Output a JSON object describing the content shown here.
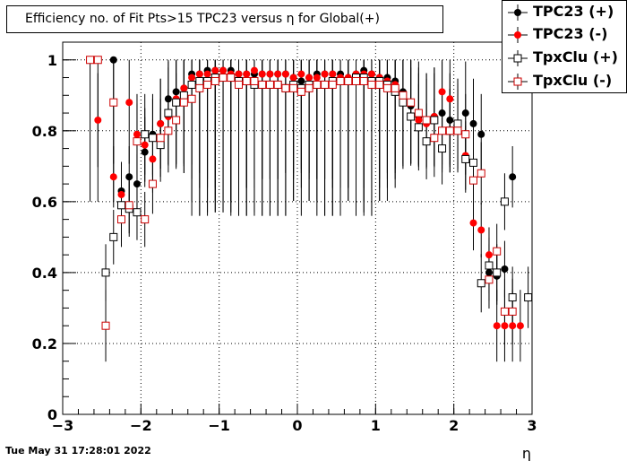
{
  "timestamp": "Tue May 31 17:28:01 2022",
  "chart_data": {
    "type": "scatter",
    "title": "Efficiency no. of Fit Pts>15 TPC23 versus η for Global(+)",
    "xlabel": "η",
    "ylabel": "",
    "xlim": [
      -3,
      3
    ],
    "ylim": [
      0,
      1.05
    ],
    "xticks": [
      "−3",
      "−2",
      "−1",
      "0",
      "1",
      "2",
      "3"
    ],
    "yticks": [
      "0",
      "0.2",
      "0.4",
      "0.6",
      "0.8",
      "1"
    ],
    "grid": true,
    "legend_position": "top-right",
    "series": [
      {
        "name": "TPC23 (+)",
        "color": "#000000",
        "marker": "filled-circle",
        "x": [
          -2.35,
          -2.25,
          -2.15,
          -2.05,
          -1.95,
          -1.85,
          -1.75,
          -1.65,
          -1.55,
          -1.45,
          -1.35,
          -1.25,
          -1.15,
          -1.05,
          -0.95,
          -0.85,
          -0.75,
          -0.65,
          -0.55,
          -0.45,
          -0.35,
          -0.25,
          -0.15,
          -0.05,
          0.05,
          0.15,
          0.25,
          0.35,
          0.45,
          0.55,
          0.65,
          0.75,
          0.85,
          0.95,
          1.05,
          1.15,
          1.25,
          1.35,
          1.45,
          1.55,
          1.65,
          1.75,
          1.85,
          1.95,
          2.05,
          2.15,
          2.25,
          2.35,
          2.45,
          2.55,
          2.65,
          2.75
        ],
        "y": [
          1.0,
          0.63,
          0.67,
          0.65,
          0.74,
          0.79,
          0.82,
          0.89,
          0.91,
          0.92,
          0.96,
          0.96,
          0.97,
          0.97,
          0.97,
          0.97,
          0.96,
          0.96,
          0.96,
          0.96,
          0.96,
          0.96,
          0.96,
          0.95,
          0.94,
          0.95,
          0.96,
          0.96,
          0.96,
          0.96,
          0.95,
          0.96,
          0.97,
          0.96,
          0.95,
          0.95,
          0.94,
          0.91,
          0.87,
          0.84,
          0.83,
          0.84,
          0.85,
          0.83,
          0.82,
          0.85,
          0.82,
          0.79,
          0.4,
          0.39,
          0.41,
          0.67
        ]
      },
      {
        "name": "TPC23 (-)",
        "color": "#ff0000",
        "marker": "filled-circle",
        "x": [
          -2.55,
          -2.35,
          -2.25,
          -2.15,
          -2.05,
          -1.95,
          -1.85,
          -1.75,
          -1.65,
          -1.55,
          -1.45,
          -1.35,
          -1.25,
          -1.15,
          -1.05,
          -0.95,
          -0.85,
          -0.75,
          -0.65,
          -0.55,
          -0.45,
          -0.35,
          -0.25,
          -0.15,
          -0.05,
          0.05,
          0.15,
          0.25,
          0.35,
          0.45,
          0.55,
          0.65,
          0.75,
          0.85,
          0.95,
          1.05,
          1.15,
          1.25,
          1.35,
          1.45,
          1.55,
          1.65,
          1.75,
          1.85,
          1.95,
          2.05,
          2.15,
          2.25,
          2.35,
          2.45,
          2.55,
          2.65,
          2.75,
          2.85
        ],
        "y": [
          0.83,
          0.67,
          0.62,
          0.88,
          0.79,
          0.76,
          0.72,
          0.82,
          0.84,
          0.89,
          0.92,
          0.95,
          0.96,
          0.96,
          0.97,
          0.97,
          0.96,
          0.96,
          0.96,
          0.97,
          0.96,
          0.96,
          0.96,
          0.96,
          0.95,
          0.96,
          0.95,
          0.95,
          0.96,
          0.96,
          0.95,
          0.95,
          0.96,
          0.96,
          0.96,
          0.95,
          0.94,
          0.93,
          0.9,
          0.88,
          0.83,
          0.82,
          0.84,
          0.91,
          0.89,
          0.81,
          0.73,
          0.54,
          0.52,
          0.45,
          0.25,
          0.25,
          0.25,
          0.25
        ]
      },
      {
        "name": "TpxClu (+)",
        "color": "#000000",
        "marker": "open-square",
        "x": [
          -2.45,
          -2.35,
          -2.25,
          -2.15,
          -2.05,
          -1.95,
          -1.85,
          -1.75,
          -1.65,
          -1.55,
          -1.45,
          -1.35,
          -1.25,
          -1.15,
          -1.05,
          -0.95,
          -0.85,
          -0.75,
          -0.65,
          -0.55,
          -0.45,
          -0.35,
          -0.25,
          -0.15,
          -0.05,
          0.05,
          0.15,
          0.25,
          0.35,
          0.45,
          0.55,
          0.65,
          0.75,
          0.85,
          0.95,
          1.05,
          1.15,
          1.25,
          1.35,
          1.45,
          1.55,
          1.65,
          1.75,
          1.85,
          1.95,
          2.05,
          2.15,
          2.25,
          2.35,
          2.45,
          2.55,
          2.65,
          2.75,
          2.95
        ],
        "y": [
          0.4,
          0.5,
          0.59,
          0.58,
          0.57,
          0.79,
          0.78,
          0.76,
          0.85,
          0.88,
          0.9,
          0.93,
          0.94,
          0.94,
          0.95,
          0.95,
          0.95,
          0.94,
          0.94,
          0.93,
          0.93,
          0.93,
          0.93,
          0.92,
          0.93,
          0.92,
          0.93,
          0.93,
          0.93,
          0.94,
          0.94,
          0.94,
          0.95,
          0.95,
          0.94,
          0.94,
          0.93,
          0.91,
          0.88,
          0.84,
          0.81,
          0.77,
          0.83,
          0.75,
          0.8,
          0.82,
          0.72,
          0.71,
          0.37,
          0.42,
          0.4,
          0.6,
          0.33,
          0.33
        ]
      },
      {
        "name": "TpxClu (-)",
        "color": "#cc0000",
        "marker": "open-square",
        "x": [
          -2.65,
          -2.55,
          -2.45,
          -2.35,
          -2.25,
          -2.15,
          -2.05,
          -1.95,
          -1.85,
          -1.75,
          -1.65,
          -1.55,
          -1.45,
          -1.35,
          -1.25,
          -1.15,
          -1.05,
          -0.95,
          -0.85,
          -0.75,
          -0.65,
          -0.55,
          -0.45,
          -0.35,
          -0.25,
          -0.15,
          -0.05,
          0.05,
          0.15,
          0.25,
          0.35,
          0.45,
          0.55,
          0.65,
          0.75,
          0.85,
          0.95,
          1.05,
          1.15,
          1.25,
          1.35,
          1.45,
          1.55,
          1.65,
          1.75,
          1.85,
          1.95,
          2.05,
          2.15,
          2.25,
          2.35,
          2.45,
          2.55,
          2.65,
          2.75
        ],
        "y": [
          1.0,
          1.0,
          0.25,
          0.88,
          0.55,
          0.59,
          0.77,
          0.55,
          0.65,
          0.78,
          0.8,
          0.83,
          0.88,
          0.89,
          0.92,
          0.93,
          0.94,
          0.95,
          0.95,
          0.93,
          0.94,
          0.94,
          0.93,
          0.93,
          0.93,
          0.92,
          0.92,
          0.91,
          0.92,
          0.93,
          0.93,
          0.93,
          0.94,
          0.94,
          0.94,
          0.94,
          0.93,
          0.93,
          0.92,
          0.92,
          0.9,
          0.88,
          0.85,
          0.83,
          0.78,
          0.8,
          0.8,
          0.8,
          0.79,
          0.66,
          0.68,
          0.38,
          0.46,
          0.29,
          0.29
        ]
      }
    ]
  }
}
